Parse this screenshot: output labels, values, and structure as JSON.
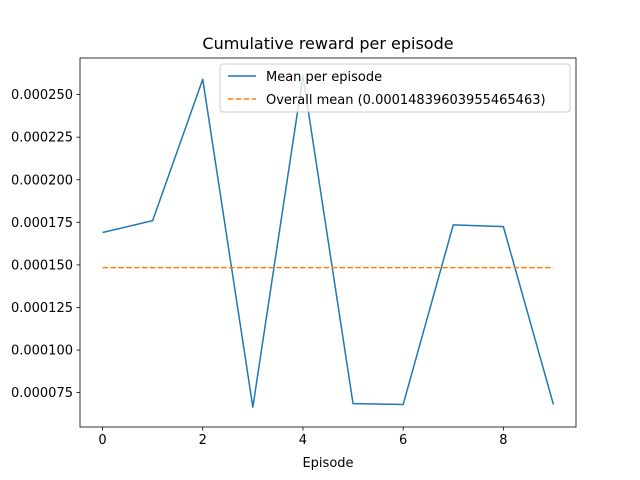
{
  "chart_data": {
    "type": "line",
    "title": "Cumulative reward per episode",
    "xlabel": "Episode",
    "ylabel": "",
    "x": [
      0,
      1,
      2,
      3,
      4,
      5,
      6,
      7,
      8,
      9
    ],
    "xlim": [
      -0.45,
      9.45
    ],
    "ylim": [
      5.48e-05,
      0.0002715
    ],
    "xticks": [
      0,
      2,
      4,
      6,
      8
    ],
    "yticks": [
      7.5e-05,
      0.0001,
      0.000125,
      0.00015,
      0.000175,
      0.0002,
      0.000225,
      0.00025
    ],
    "xtick_labels": [
      "0",
      "2",
      "4",
      "6",
      "8"
    ],
    "ytick_labels": [
      "0.000075",
      "0.000100",
      "0.000125",
      "0.000150",
      "0.000175",
      "0.000200",
      "0.000225",
      "0.000250"
    ],
    "series": [
      {
        "name": "Mean per episode",
        "style": "solid",
        "color": "#1f77b4",
        "values": [
          0.000169,
          0.000176,
          0.000259,
          6.65e-05,
          0.000261,
          6.85e-05,
          6.8e-05,
          0.0001735,
          0.0001725,
          6.8e-05
        ]
      },
      {
        "name": "Overall mean (0.00014839603955465463)",
        "style": "dashed",
        "color": "#ff7f0e",
        "values": [
          0.00014839603955465463,
          0.00014839603955465463,
          0.00014839603955465463,
          0.00014839603955465463,
          0.00014839603955465463,
          0.00014839603955465463,
          0.00014839603955465463,
          0.00014839603955465463,
          0.00014839603955465463,
          0.00014839603955465463
        ]
      }
    ],
    "legend_position": "top-right",
    "grid": false
  }
}
